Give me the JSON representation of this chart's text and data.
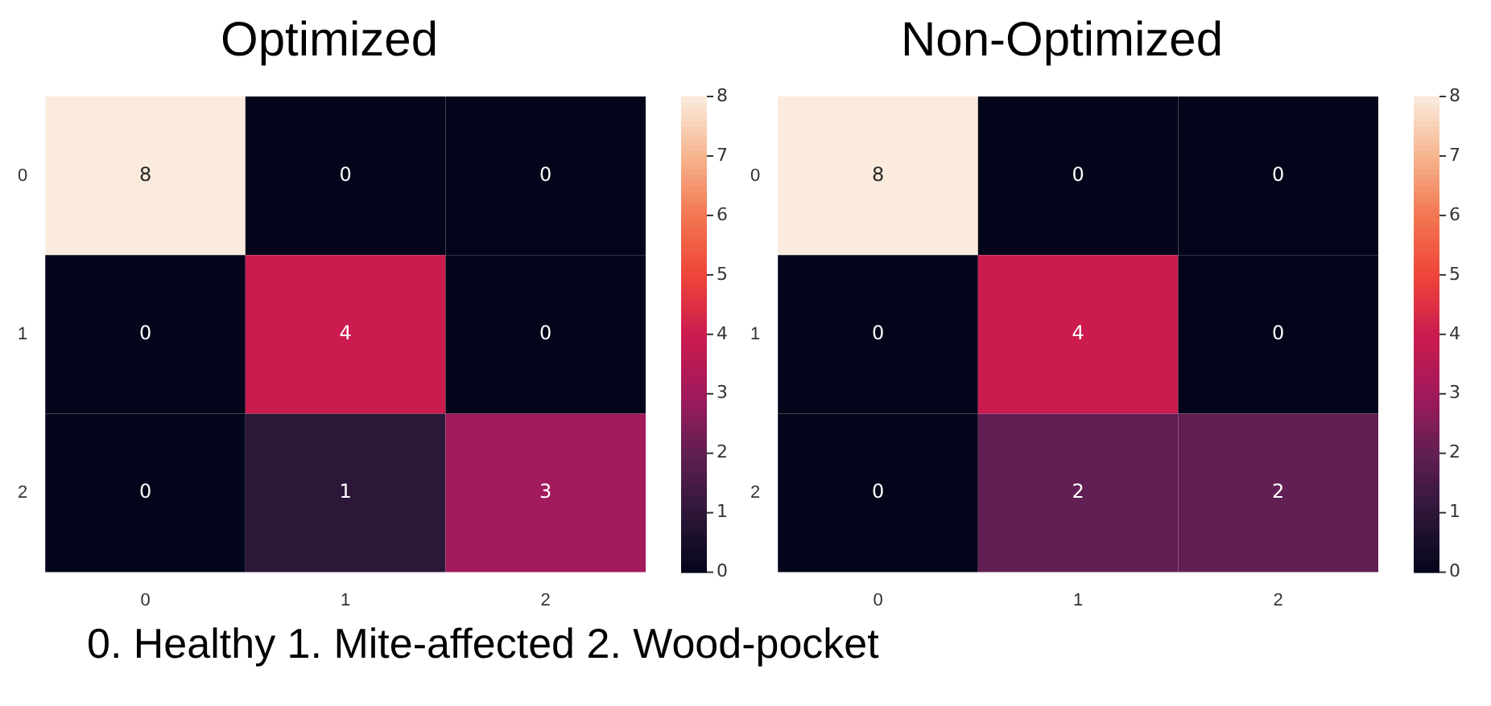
{
  "chart_data": [
    {
      "type": "heatmap",
      "title": "Optimized",
      "categories": [
        "0",
        "1",
        "2"
      ],
      "y_categories": [
        "0",
        "1",
        "2"
      ],
      "cells": [
        [
          8,
          0,
          0
        ],
        [
          0,
          4,
          0
        ],
        [
          0,
          1,
          3
        ]
      ],
      "clim": [
        0,
        8
      ],
      "cticks": [
        0,
        1,
        2,
        3,
        4,
        5,
        6,
        7,
        8
      ],
      "data_labels": true,
      "annotations": [
        "0. Healthy 1. Mite-affected  2. Wood-pocket"
      ]
    },
    {
      "type": "heatmap",
      "title": "Non-Optimized",
      "categories": [
        "0",
        "1",
        "2"
      ],
      "y_categories": [
        "0",
        "1",
        "2"
      ],
      "cells": [
        [
          8,
          0,
          0
        ],
        [
          0,
          4,
          0
        ],
        [
          0,
          2,
          2
        ]
      ],
      "clim": [
        0,
        8
      ],
      "cticks": [
        0,
        1,
        2,
        3,
        4,
        5,
        6,
        7,
        8
      ],
      "data_labels": true
    }
  ]
}
